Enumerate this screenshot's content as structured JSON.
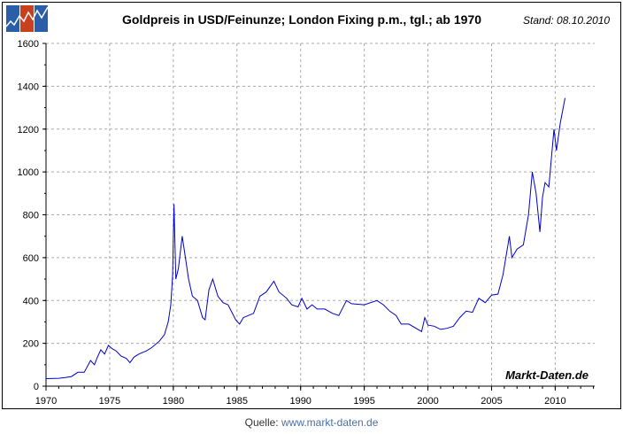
{
  "header": {
    "title": "Goldpreis in USD/Feinunze; London Fixing p.m., tgl.; ab 1970",
    "stand": "Stand: 08.10.2010",
    "logo_colors": [
      "#2a5ea8",
      "#c8401e",
      "#2a5ea8"
    ]
  },
  "footer": {
    "label": "Quelle:",
    "link": "www.markt-daten.de"
  },
  "watermark": "Markt-Daten.de",
  "chart_data": {
    "type": "line",
    "title": "Goldpreis in USD/Feinunze; London Fixing p.m., tgl.; ab 1970",
    "xlabel": "",
    "ylabel": "",
    "xlim": [
      1970,
      2013.1
    ],
    "ylim": [
      0,
      1600
    ],
    "xticks": [
      1970,
      1975,
      1980,
      1985,
      1990,
      1995,
      2000,
      2005,
      2010
    ],
    "yticks": [
      0,
      200,
      400,
      600,
      800,
      1000,
      1200,
      1400,
      1600
    ],
    "grid": true,
    "line_color": "#0000cc",
    "x": [
      1970.0,
      1971.0,
      1971.5,
      1972.0,
      1972.5,
      1973.0,
      1973.5,
      1973.8,
      1974.0,
      1974.3,
      1974.6,
      1974.9,
      1975.2,
      1975.5,
      1975.9,
      1976.3,
      1976.6,
      1976.9,
      1977.3,
      1977.9,
      1978.3,
      1978.9,
      1979.3,
      1979.6,
      1979.8,
      1979.95,
      1980.05,
      1980.2,
      1980.4,
      1980.7,
      1980.9,
      1981.2,
      1981.5,
      1981.9,
      1982.3,
      1982.5,
      1982.8,
      1983.1,
      1983.5,
      1983.9,
      1984.3,
      1984.9,
      1985.2,
      1985.5,
      1985.9,
      1986.3,
      1986.8,
      1987.3,
      1987.9,
      1988.3,
      1988.9,
      1989.3,
      1989.8,
      1990.1,
      1990.5,
      1990.9,
      1991.3,
      1991.9,
      1992.5,
      1993.0,
      1993.6,
      1994.0,
      1995.0,
      1996.0,
      1996.5,
      1997.0,
      1997.5,
      1997.9,
      1998.5,
      1999.5,
      1999.75,
      2000.0,
      2000.5,
      2001.0,
      2001.5,
      2002.0,
      2002.5,
      2003.0,
      2003.5,
      2004.0,
      2004.5,
      2005.0,
      2005.5,
      2005.9,
      2006.4,
      2006.6,
      2007.0,
      2007.5,
      2007.9,
      2008.2,
      2008.5,
      2008.8,
      2009.0,
      2009.2,
      2009.5,
      2009.9,
      2010.1,
      2010.4,
      2010.77
    ],
    "y": [
      35,
      37,
      40,
      45,
      65,
      65,
      120,
      100,
      130,
      170,
      150,
      190,
      175,
      165,
      140,
      130,
      110,
      135,
      150,
      165,
      180,
      210,
      240,
      300,
      380,
      520,
      850,
      500,
      550,
      700,
      620,
      500,
      420,
      400,
      320,
      310,
      450,
      500,
      420,
      390,
      380,
      310,
      290,
      320,
      330,
      340,
      420,
      440,
      490,
      440,
      410,
      380,
      370,
      410,
      360,
      380,
      360,
      360,
      340,
      330,
      400,
      385,
      380,
      400,
      380,
      350,
      330,
      290,
      290,
      255,
      320,
      285,
      280,
      265,
      270,
      280,
      320,
      350,
      345,
      410,
      390,
      425,
      430,
      520,
      700,
      600,
      640,
      660,
      800,
      1000,
      900,
      720,
      880,
      950,
      930,
      1200,
      1100,
      1230,
      1345
    ]
  }
}
